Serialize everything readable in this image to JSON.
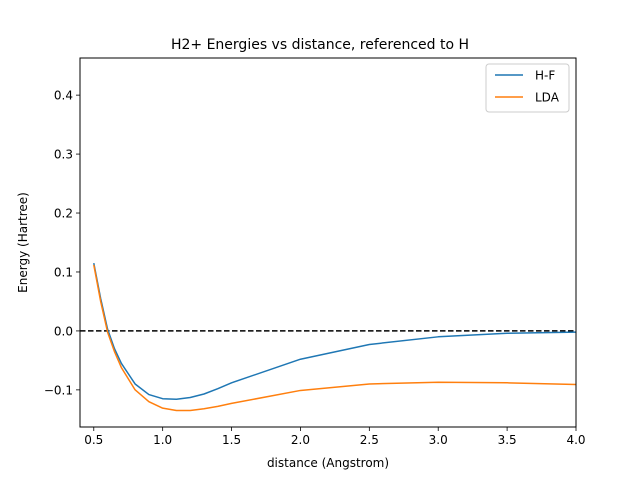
{
  "chart_data": {
    "type": "line",
    "title": "H2+ Energies vs distance, referenced to H",
    "xlabel": "distance (Angstrom)",
    "ylabel": "Energy (Hartree)",
    "xlim": [
      0.4,
      4.0
    ],
    "ylim": [
      -0.163,
      0.463
    ],
    "xticks": [
      0.5,
      1.0,
      1.5,
      2.0,
      2.5,
      3.0,
      3.5,
      4.0
    ],
    "xtick_labels": [
      "0.5",
      "1.0",
      "1.5",
      "2.0",
      "2.5",
      "3.0",
      "3.5",
      "4.0"
    ],
    "yticks": [
      -0.1,
      0.0,
      0.1,
      0.2,
      0.3,
      0.4
    ],
    "ytick_labels": [
      "−0.1",
      "0.0",
      "0.1",
      "0.2",
      "0.3",
      "0.4"
    ],
    "grid": false,
    "legend_position": "top-right",
    "reference_line": {
      "y": 0.0,
      "style": "dashed",
      "color": "#000000"
    },
    "series": [
      {
        "name": "H-F",
        "color": "#1f77b4",
        "x": [
          0.5,
          0.55,
          0.6,
          0.65,
          0.7,
          0.8,
          0.9,
          1.0,
          1.1,
          1.2,
          1.3,
          1.4,
          1.5,
          2.0,
          2.5,
          3.0,
          3.5,
          4.0
        ],
        "y": [
          0.115,
          0.055,
          0.003,
          -0.03,
          -0.055,
          -0.09,
          -0.108,
          -0.115,
          -0.116,
          -0.113,
          -0.107,
          -0.098,
          -0.088,
          -0.048,
          -0.023,
          -0.01,
          -0.004,
          -0.002
        ]
      },
      {
        "name": "LDA",
        "color": "#ff7f0e",
        "x": [
          0.5,
          0.55,
          0.6,
          0.65,
          0.7,
          0.8,
          0.9,
          1.0,
          1.1,
          1.2,
          1.3,
          1.4,
          1.5,
          2.0,
          2.5,
          3.0,
          3.5,
          4.0
        ],
        "y": [
          0.112,
          0.05,
          -0.002,
          -0.035,
          -0.062,
          -0.1,
          -0.12,
          -0.131,
          -0.135,
          -0.135,
          -0.132,
          -0.128,
          -0.123,
          -0.101,
          -0.09,
          -0.087,
          -0.088,
          -0.091
        ]
      }
    ]
  }
}
